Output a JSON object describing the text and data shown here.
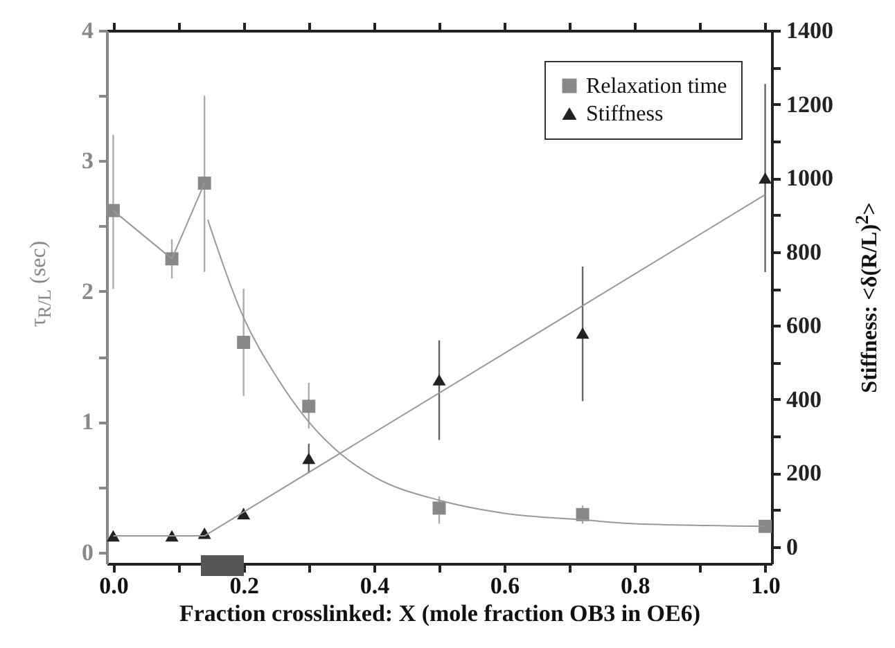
{
  "chart_data": {
    "type": "scatter",
    "xlabel": "Fraction crosslinked: X (mole fraction OB3 in OE6)",
    "ylabel": "τ$_{R/L}$ (sec)",
    "y2label": "Stiffness: <δ(R/L)$^{2}$>",
    "x": [
      0,
      0.09,
      0.14,
      0.2,
      0.3,
      0.5,
      0.72,
      1.0
    ],
    "series": [
      {
        "name": "Relaxation time",
        "color": "#888888",
        "marker": "square",
        "values": [
          2.62,
          2.25,
          2.83,
          1.61,
          1.12,
          0.34,
          0.29,
          0.2
        ],
        "errors": [
          [
            2.02,
            3.2
          ],
          [
            2.1,
            2.4
          ],
          [
            2.15,
            3.5
          ],
          [
            1.2,
            2.02
          ],
          [
            0.95,
            1.3
          ],
          [
            0.22,
            0.43
          ],
          [
            0.22,
            0.36
          ],
          [
            0.15,
            0.25
          ]
        ]
      },
      {
        "type": "line",
        "color": "#999999",
        "x": [
          0,
          0.09,
          0.14
        ],
        "values": [
          2.62,
          2.25,
          2.83
        ]
      },
      {
        "type": "line",
        "color": "#999999",
        "x": [
          0.145,
          0.2,
          0.25,
          0.3,
          0.35,
          0.4,
          0.5,
          0.6,
          0.72,
          0.8,
          1.0
        ],
        "values": [
          2.55,
          1.8,
          1.35,
          1.0,
          0.75,
          0.58,
          0.4,
          0.3,
          0.25,
          0.22,
          0.2
        ]
      },
      {
        "name": "Stiffness",
        "axis": "y2",
        "color": "#222222",
        "marker": "triangle",
        "values": [
          30,
          30,
          37,
          90,
          240,
          453,
          580,
          1000
        ],
        "errors": [
          null,
          null,
          null,
          [
            75,
            105
          ],
          [
            200,
            280
          ],
          [
            290,
            560
          ],
          [
            395,
            760
          ],
          [
            745,
            1255
          ]
        ]
      },
      {
        "type": "line",
        "axis": "y2",
        "color": "#999999",
        "x": [
          0,
          0.14,
          1.0
        ],
        "values": [
          30,
          30,
          955
        ]
      }
    ],
    "xlim": [
      -0.01,
      1.01
    ],
    "xticks": [
      {
        "value": 0,
        "label": "0.0"
      },
      {
        "value": 0.1,
        "label": null
      },
      0.2,
      {
        "value": 0.3,
        "label": null
      },
      0.4,
      {
        "value": 0.5,
        "label": null
      },
      0.6,
      {
        "value": 0.7,
        "label": null
      },
      0.8,
      {
        "value": 0.9,
        "label": null
      },
      {
        "value": 1,
        "label": "1.0"
      }
    ],
    "ylim": [
      -0.085,
      4
    ],
    "yticks": [
      0,
      {
        "value": 0.5,
        "label": null
      },
      1,
      {
        "value": 1.5,
        "label": null
      },
      2,
      {
        "value": 2.5,
        "label": null
      },
      3,
      {
        "value": 3.5,
        "label": null
      },
      4
    ],
    "y2lim": [
      -45,
      1400
    ],
    "y2ticks": [
      0,
      {
        "value": 100,
        "label": null
      },
      200,
      {
        "value": 300,
        "label": null
      },
      400,
      {
        "value": 500,
        "label": null
      },
      600,
      {
        "value": 700,
        "label": null
      },
      800,
      {
        "value": 900,
        "label": null
      },
      1000,
      {
        "value": 1100,
        "label": null
      },
      1200,
      {
        "value": 1300,
        "label": null
      },
      1400
    ],
    "legend": "top right",
    "grid": false
  }
}
